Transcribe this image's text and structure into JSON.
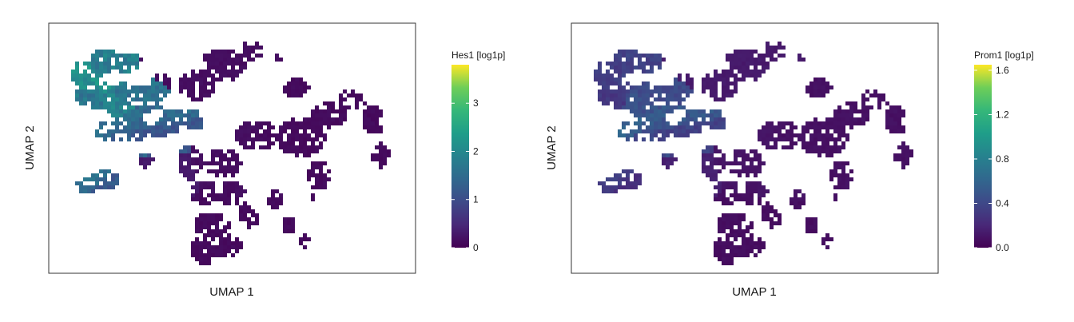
{
  "chart_data": [
    {
      "type": "scatter",
      "subtype": "hexbin-umap",
      "xlabel": "UMAP 1",
      "ylabel": "UMAP 2",
      "colorbar": {
        "title": "Hes1 [log1p]",
        "min": 0,
        "max": 3.8,
        "ticks": [
          0,
          1,
          2,
          3
        ],
        "tick_labels": [
          "0",
          "1",
          "2",
          "3"
        ],
        "colormap": "viridis"
      },
      "regions": [
        {
          "x": 0.12,
          "y": 0.78,
          "level": 0.55
        },
        {
          "x": 0.16,
          "y": 0.8,
          "level": 0.48
        },
        {
          "x": 0.1,
          "y": 0.7,
          "level": 0.45
        },
        {
          "x": 0.18,
          "y": 0.68,
          "level": 0.5
        },
        {
          "x": 0.22,
          "y": 0.72,
          "level": 0.42
        },
        {
          "x": 0.24,
          "y": 0.62,
          "level": 0.38
        },
        {
          "x": 0.14,
          "y": 0.6,
          "level": 0.4
        },
        {
          "x": 0.26,
          "y": 0.55,
          "level": 0.3
        },
        {
          "x": 0.2,
          "y": 0.52,
          "level": 0.35
        },
        {
          "x": 0.1,
          "y": 0.35,
          "level": 0.4
        },
        {
          "x": 0.13,
          "y": 0.33,
          "level": 0.32
        },
        {
          "x": 0.28,
          "y": 0.4,
          "level": 0.08
        },
        {
          "x": 0.35,
          "y": 0.85,
          "level": 0.04
        },
        {
          "x": 0.5,
          "y": 0.45,
          "level": 0.04
        },
        {
          "x": 0.7,
          "y": 0.55,
          "level": 0.03
        },
        {
          "x": 0.45,
          "y": 0.2,
          "level": 0.03
        },
        {
          "x": 0.88,
          "y": 0.55,
          "level": 0.03
        }
      ]
    },
    {
      "type": "scatter",
      "subtype": "hexbin-umap",
      "xlabel": "UMAP 1",
      "ylabel": "UMAP 2",
      "colorbar": {
        "title": "Prom1 [log1p]",
        "min": 0,
        "max": 1.65,
        "ticks": [
          0,
          0.4,
          0.8,
          1.2,
          1.6
        ],
        "tick_labels": [
          "0.0",
          "0.4",
          "0.8",
          "1.2",
          "1.6"
        ],
        "colormap": "viridis"
      },
      "regions": [
        {
          "x": 0.12,
          "y": 0.78,
          "level": 0.2
        },
        {
          "x": 0.16,
          "y": 0.8,
          "level": 0.22
        },
        {
          "x": 0.1,
          "y": 0.7,
          "level": 0.18
        },
        {
          "x": 0.18,
          "y": 0.68,
          "level": 0.28
        },
        {
          "x": 0.22,
          "y": 0.72,
          "level": 0.25
        },
        {
          "x": 0.24,
          "y": 0.62,
          "level": 0.3
        },
        {
          "x": 0.14,
          "y": 0.6,
          "level": 0.35
        },
        {
          "x": 0.26,
          "y": 0.55,
          "level": 0.22
        },
        {
          "x": 0.2,
          "y": 0.52,
          "level": 0.25
        },
        {
          "x": 0.1,
          "y": 0.35,
          "level": 0.2
        },
        {
          "x": 0.13,
          "y": 0.33,
          "level": 0.15
        },
        {
          "x": 0.28,
          "y": 0.4,
          "level": 0.1
        },
        {
          "x": 0.35,
          "y": 0.85,
          "level": 0.08
        },
        {
          "x": 0.5,
          "y": 0.45,
          "level": 0.06
        },
        {
          "x": 0.7,
          "y": 0.55,
          "level": 0.05
        },
        {
          "x": 0.45,
          "y": 0.2,
          "level": 0.04
        },
        {
          "x": 0.88,
          "y": 0.55,
          "level": 0.05
        }
      ]
    }
  ]
}
